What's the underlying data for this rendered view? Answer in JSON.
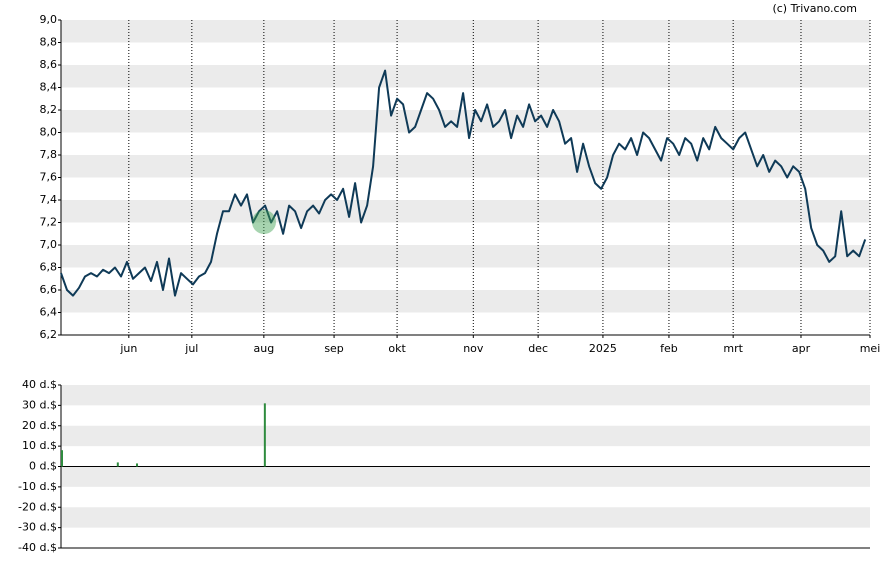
{
  "credit": "(c) Trivano.com",
  "chart_data": [
    {
      "type": "line",
      "xlim": [
        0,
        134.8
      ],
      "xticks": [
        {
          "value": 11.3,
          "label": "jun"
        },
        {
          "value": 21.8,
          "label": "jul"
        },
        {
          "value": 33.8,
          "label": "aug"
        },
        {
          "value": 45.5,
          "label": "sep"
        },
        {
          "value": 56,
          "label": "okt"
        },
        {
          "value": 68.7,
          "label": "nov"
        },
        {
          "value": 79.5,
          "label": "dec"
        },
        {
          "value": 90.3,
          "label": "2025"
        },
        {
          "value": 101.3,
          "label": "feb"
        },
        {
          "value": 112,
          "label": "mrt"
        },
        {
          "value": 123.3,
          "label": "apr"
        },
        {
          "value": 134.8,
          "label": "mei"
        }
      ],
      "ylim": [
        6.2,
        9.0
      ],
      "yticks": [
        {
          "value": 6.2,
          "label": "6,2"
        },
        {
          "value": 6.4,
          "label": "6,4"
        },
        {
          "value": 6.6,
          "label": "6,6"
        },
        {
          "value": 6.8,
          "label": "6,8"
        },
        {
          "value": 7.0,
          "label": "7,0"
        },
        {
          "value": 7.2,
          "label": "7,2"
        },
        {
          "value": 7.4,
          "label": "7,4"
        },
        {
          "value": 7.6,
          "label": "7,6"
        },
        {
          "value": 7.8,
          "label": "7,8"
        },
        {
          "value": 8.0,
          "label": "8,0"
        },
        {
          "value": 8.2,
          "label": "8,2"
        },
        {
          "value": 8.4,
          "label": "8,4"
        },
        {
          "value": 8.6,
          "label": "8,6"
        },
        {
          "value": 8.8,
          "label": "8,8"
        },
        {
          "value": 9.0,
          "label": "9,0"
        }
      ],
      "grid": true,
      "series": [
        {
          "color": "#0f3a57",
          "values": [
            6.75,
            6.6,
            6.55,
            6.62,
            6.72,
            6.75,
            6.72,
            6.78,
            6.75,
            6.8,
            6.72,
            6.85,
            6.7,
            6.75,
            6.8,
            6.68,
            6.85,
            6.6,
            6.88,
            6.55,
            6.75,
            6.7,
            6.65,
            6.72,
            6.75,
            6.85,
            7.1,
            7.3,
            7.3,
            7.45,
            7.35,
            7.45,
            7.2,
            7.3,
            7.35,
            7.2,
            7.3,
            7.1,
            7.35,
            7.3,
            7.15,
            7.3,
            7.35,
            7.28,
            7.4,
            7.45,
            7.4,
            7.5,
            7.25,
            7.55,
            7.2,
            7.35,
            7.7,
            8.4,
            8.55,
            8.15,
            8.3,
            8.25,
            8.0,
            8.05,
            8.2,
            8.35,
            8.3,
            8.2,
            8.05,
            8.1,
            8.05,
            8.35,
            7.95,
            8.2,
            8.1,
            8.25,
            8.05,
            8.1,
            8.2,
            7.95,
            8.15,
            8.05,
            8.25,
            8.1,
            8.15,
            8.05,
            8.2,
            8.1,
            7.9,
            7.95,
            7.65,
            7.9,
            7.7,
            7.55,
            7.5,
            7.6,
            7.8,
            7.9,
            7.85,
            7.95,
            7.8,
            8.0,
            7.95,
            7.85,
            7.75,
            7.95,
            7.9,
            7.8,
            7.95,
            7.9,
            7.75,
            7.95,
            7.85,
            8.05,
            7.95,
            7.9,
            7.85,
            7.95,
            8.0,
            7.85,
            7.7,
            7.8,
            7.65,
            7.75,
            7.7,
            7.6,
            7.7,
            7.65,
            7.5,
            7.15,
            7.0,
            6.95,
            6.85,
            6.9,
            7.3,
            6.9,
            6.95,
            6.9,
            7.05
          ]
        }
      ]
    },
    {
      "type": "bar",
      "xlim": [
        0,
        134.8
      ],
      "ylim": [
        -40,
        40
      ],
      "yticks": [
        {
          "value": -40,
          "label": "-40 d.$"
        },
        {
          "value": -30,
          "label": "-30 d.$"
        },
        {
          "value": -20,
          "label": "-20 d.$"
        },
        {
          "value": -10,
          "label": "-10 d.$"
        },
        {
          "value": 0,
          "label": "0 d.$"
        },
        {
          "value": 10,
          "label": "10 d.$"
        },
        {
          "value": 20,
          "label": "20 d.$"
        },
        {
          "value": 30,
          "label": "30 d.$"
        },
        {
          "value": 40,
          "label": "40 d.$"
        }
      ],
      "grid": true,
      "series": [
        {
          "color": "#2e8b3e",
          "x": [
            0,
            9.3,
            12.5,
            33.8
          ],
          "values": [
            8,
            2,
            1.5,
            31
          ]
        }
      ]
    }
  ]
}
